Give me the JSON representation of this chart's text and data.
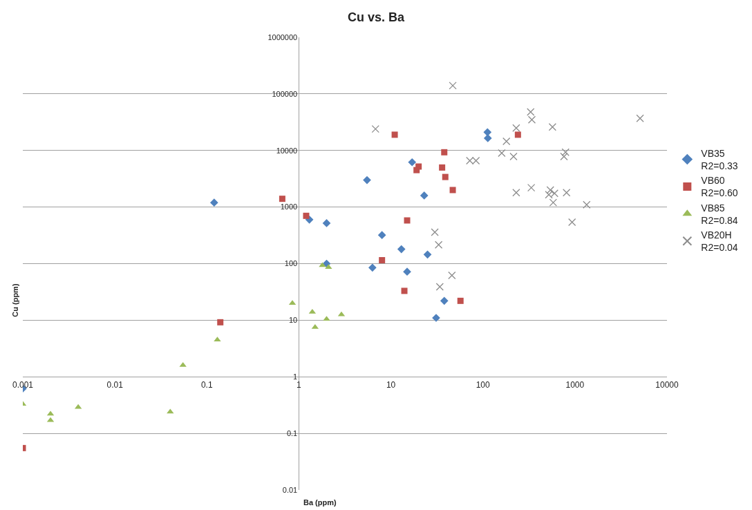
{
  "chart_data": {
    "type": "scatter",
    "title": "Cu vs. Ba",
    "xlabel": "Ba (ppm)",
    "ylabel": "Cu (ppm)",
    "log": "xy",
    "grid": "y",
    "legend": "right",
    "xlim": [
      0.001,
      10000
    ],
    "xticks": [
      0.001,
      0.01,
      0.1,
      1,
      10,
      100,
      1000,
      10000
    ],
    "ylim": [
      0.01,
      1000000
    ],
    "yticks": [
      0.01,
      0.1,
      1,
      10,
      100,
      1000,
      10000,
      100000,
      1000000
    ],
    "series": [
      {
        "name": "VB35\nR2=0.33",
        "color": "#4f81bd",
        "marker": "diamond",
        "x": [
          0.001,
          0.12,
          1.3,
          2,
          2,
          5.5,
          17,
          23,
          112,
          113,
          8,
          13,
          25,
          6.3,
          15,
          38,
          31
        ],
        "values": [
          0.62,
          1200,
          600,
          520,
          100,
          3000,
          6200,
          1600,
          21000,
          16500,
          320,
          180,
          145,
          85,
          72,
          22,
          11
        ]
      },
      {
        "name": "VB60\nR2=0.60",
        "color": "#c0504d",
        "marker": "square",
        "x": [
          0.001,
          0.66,
          1.2,
          0.14,
          11,
          240,
          38,
          20,
          19,
          36,
          39,
          47,
          15,
          8,
          14,
          57
        ],
        "values": [
          0.055,
          1400,
          700,
          9.2,
          19000,
          19000,
          9300,
          5200,
          4500,
          5000,
          3400,
          2000,
          580,
          115,
          33,
          22
        ]
      },
      {
        "name": "VB85\nR2=0.84",
        "color": "#9bbb59",
        "marker": "triangle",
        "x": [
          0.001,
          0.002,
          0.002,
          0.004,
          0.04,
          0.055,
          0.13,
          0.85,
          1.4,
          1.5,
          2,
          1.8,
          2.1,
          2.9
        ],
        "values": [
          0.33,
          0.22,
          0.17,
          0.29,
          0.24,
          1.6,
          4.5,
          20,
          14,
          7.5,
          10.5,
          93,
          86,
          12.6
        ]
      },
      {
        "name": "VB20H\nR2=0.04",
        "color": "#8c8c8c",
        "marker": "cross",
        "x": [
          47,
          6.8,
          330,
          340,
          5100,
          570,
          230,
          180,
          160,
          215,
          790,
          760,
          72,
          84,
          230,
          335,
          540,
          520,
          600,
          810,
          580,
          1340,
          930,
          30,
          33,
          46,
          34
        ],
        "values": [
          140000,
          24000,
          48000,
          35000,
          37000,
          26000,
          25000,
          14500,
          9000,
          7800,
          9300,
          7800,
          6600,
          6600,
          1800,
          2200,
          2000,
          1650,
          1750,
          1800,
          1200,
          1100,
          540,
          360,
          215,
          62,
          39
        ]
      }
    ]
  }
}
